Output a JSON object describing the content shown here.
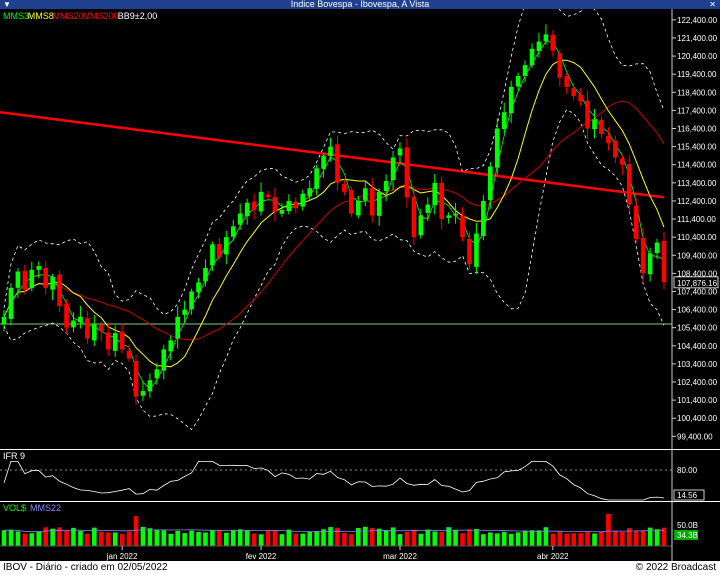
{
  "window": {
    "title": "Índice Bovespa - Ibovespa, A Vista"
  },
  "legend": [
    {
      "label": "MMS3",
      "color": "#00ff00"
    },
    {
      "label": "MMS8",
      "color": "#ffff00"
    },
    {
      "label": "MMS20",
      "color": "#ff0000"
    },
    {
      "label": "MMS200",
      "color": "#ff0000"
    },
    {
      "label": "BB9±2,00",
      "color": "#ffffff"
    }
  ],
  "price_axis": {
    "ticks": [
      "122,400.00",
      "121,400.00",
      "120,400.00",
      "119,400.00",
      "118,400.00",
      "117,400.00",
      "116,400.00",
      "115,400.00",
      "114,400.00",
      "113,400.00",
      "112,400.00",
      "111,400.00",
      "110,400.00",
      "109,400.00",
      "108,400.00",
      "107,400.00",
      "106,400.00",
      "105,400.00",
      "104,400.00",
      "103,400.00",
      "102,400.00",
      "101,400.00",
      "100,400.00",
      "99,400.00"
    ],
    "last_price_label": "107,876.16"
  },
  "ifr": {
    "label": "IFR 9",
    "level_label": "80.00",
    "last_label": "14.56"
  },
  "volume": {
    "label": "VOL$",
    "ma_label": "MMS22",
    "level_label": "50.0B",
    "last_label": "34.3B"
  },
  "dates": [
    "jan 2022",
    "fev 2022",
    "mar 2022",
    "abr 2022"
  ],
  "footer": {
    "left": "IBOV - Diário - criado em 02/05/2022",
    "right": "© 2022 Broadcast"
  },
  "colors": {
    "up": "#00ff00",
    "down": "#ff0000",
    "mms3": "#00ff00",
    "mms8": "#ffff00",
    "mms20": "#cc0000",
    "mms200": "#ff0000",
    "bollinger": "#ffffff",
    "support": "#7fd07f"
  },
  "chart_data": {
    "type": "candlestick",
    "title": "Índice Bovespa - Ibovespa, A Vista",
    "ylim": [
      98700,
      123000
    ],
    "y_ticks": [
      122400,
      121400,
      120400,
      119400,
      118400,
      117400,
      116400,
      115400,
      114400,
      113400,
      112400,
      111400,
      110400,
      109400,
      108400,
      107400,
      106400,
      105400,
      104400,
      103400,
      102400,
      101400,
      100400,
      99400
    ],
    "support_level": 105600,
    "mms200": {
      "start": 117300,
      "end": 112600
    },
    "last_close": 107876.16,
    "closes": [
      106000,
      107600,
      108500,
      107500,
      108600,
      108800,
      107600,
      108200,
      106600,
      105400,
      105800,
      106000,
      104800,
      105600,
      105200,
      104200,
      105100,
      104200,
      103700,
      101600,
      101900,
      102500,
      103100,
      104200,
      104700,
      106000,
      106400,
      107400,
      107900,
      108700,
      110000,
      109300,
      110400,
      111000,
      111700,
      112300,
      111900,
      112900,
      112600,
      111800,
      111900,
      112400,
      112000,
      112800,
      113100,
      114200,
      114900,
      115400,
      113400,
      112900,
      111700,
      112400,
      113100,
      111600,
      112900,
      113500,
      114800,
      115300,
      112600,
      110400,
      111600,
      112200,
      113400,
      111400,
      111600,
      111700,
      110400,
      108900,
      110600,
      112400,
      114300,
      116400,
      117300,
      118700,
      119300,
      119900,
      120800,
      121200,
      121600,
      120700,
      119200,
      118700,
      118200,
      117900,
      116400,
      116900,
      116100,
      115600,
      114800,
      114400,
      112200,
      110300,
      108400,
      109500,
      110100,
      107900
    ],
    "ifr_level": 80,
    "ifr_last": 14.56,
    "volume_level_B": 50,
    "volume_last_B": 34.3,
    "date_labels": [
      "jan 2022",
      "fev 2022",
      "mar 2022",
      "abr 2022"
    ],
    "date_label_candles": [
      17,
      37,
      57,
      79
    ],
    "grid": false
  }
}
